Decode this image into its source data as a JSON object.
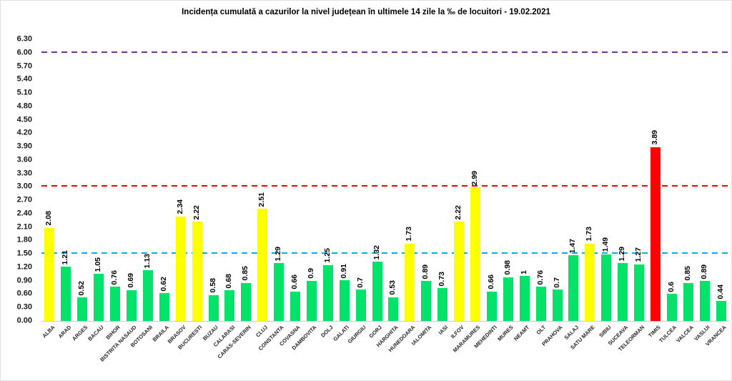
{
  "title": "Incidența cumulată a cazurilor la nivel județean în ultimele 14 zile la ‰ de locuitori - 19.02.2021",
  "chart_data": {
    "type": "bar",
    "title": "Incidența cumulată a cazurilor la nivel județean în ultimele 14 zile la ‰ de locuitori - 19.02.2021",
    "xlabel": "",
    "ylabel": "",
    "ylim": [
      0,
      6.3
    ],
    "ytick_step": 0.3,
    "grid": false,
    "legend": null,
    "yticks": [
      "6.30",
      "6.00",
      "5.70",
      "5.40",
      "5.10",
      "4.80",
      "4.50",
      "4.20",
      "3.90",
      "3.60",
      "3.30",
      "3.00",
      "2.70",
      "2.40",
      "2.10",
      "1.80",
      "1.50",
      "1.20",
      "0.90",
      "0.60",
      "0.30",
      "0.00"
    ],
    "categories": [
      "ALBA",
      "ARAD",
      "ARGES",
      "BACAU",
      "BIHOR",
      "BISTRITA NASAUD",
      "BOTOSANI",
      "BRAILA",
      "BRASOV",
      "BUCURESTI",
      "BUZAU",
      "CALARASI",
      "CARAS-SEVERIN",
      "CLUJ",
      "CONSTANTA",
      "COVASNA",
      "DAMBOVITA",
      "DOLJ",
      "GALATI",
      "GIURGIU",
      "GORJ",
      "HARGHITA",
      "HUNEDOARA",
      "IALOMITA",
      "IASI",
      "ILFOV",
      "MARAMURES",
      "MEHEDINTI",
      "MURES",
      "NEAMT",
      "OLT",
      "PRAHOVA",
      "SALAJ",
      "SATU MARE",
      "SIBIU",
      "SUCEAVA",
      "TELEORMAN",
      "TIMIS",
      "TULCEA",
      "VALCEA",
      "VASLUI",
      "VRANCEA"
    ],
    "values": [
      2.08,
      1.21,
      0.52,
      1.05,
      0.76,
      0.69,
      1.13,
      0.62,
      2.34,
      2.22,
      0.58,
      0.68,
      0.85,
      2.51,
      1.29,
      0.66,
      0.9,
      1.25,
      0.91,
      0.7,
      1.32,
      0.53,
      1.73,
      0.89,
      0.73,
      2.22,
      2.99,
      0.66,
      0.98,
      1,
      0.76,
      0.7,
      1.47,
      1.73,
      1.49,
      1.29,
      1.27,
      3.89,
      0.6,
      0.85,
      0.89,
      0.44
    ],
    "value_labels": [
      "2.08",
      "1.21",
      "0.52",
      "1.05",
      "0.76",
      "0.69",
      "1.13",
      "0.62",
      "2.34",
      "2.22",
      "0.58",
      "0.68",
      "0.85",
      "2.51",
      "1.29",
      "0.66",
      "0.9",
      "1.25",
      "0.91",
      "0.7",
      "1.32",
      "0.53",
      "1.73",
      "0.89",
      "0.73",
      "2.22",
      "2.99",
      "0.66",
      "0.98",
      "1",
      "0.76",
      "0.7",
      "1.47",
      "1.73",
      "1.49",
      "1.29",
      "1.27",
      "3.89",
      "0.6",
      "0.85",
      "0.89",
      "0.44"
    ],
    "bar_color_keys": [
      "yellow",
      "green",
      "green",
      "green",
      "green",
      "green",
      "green",
      "green",
      "yellow",
      "yellow",
      "green",
      "green",
      "green",
      "yellow",
      "green",
      "green",
      "green",
      "green",
      "green",
      "green",
      "green",
      "green",
      "yellow",
      "green",
      "green",
      "yellow",
      "yellow",
      "green",
      "green",
      "green",
      "green",
      "green",
      "green",
      "yellow",
      "green",
      "green",
      "green",
      "red",
      "green",
      "green",
      "green",
      "green"
    ],
    "colors": {
      "green": "#05E26A",
      "yellow": "#FFFF00",
      "red": "#FF0000"
    },
    "threshold_lines": [
      {
        "value": 6.0,
        "color": "#7030A0",
        "style": "dashed",
        "name": "purple-line-6.00"
      },
      {
        "value": 3.0,
        "color": "#FF0000",
        "style": "dashed",
        "name": "red-line-3.00"
      },
      {
        "value": 1.5,
        "color": "#00B0F0",
        "style": "dashed",
        "name": "blue-line-1.50"
      }
    ]
  }
}
